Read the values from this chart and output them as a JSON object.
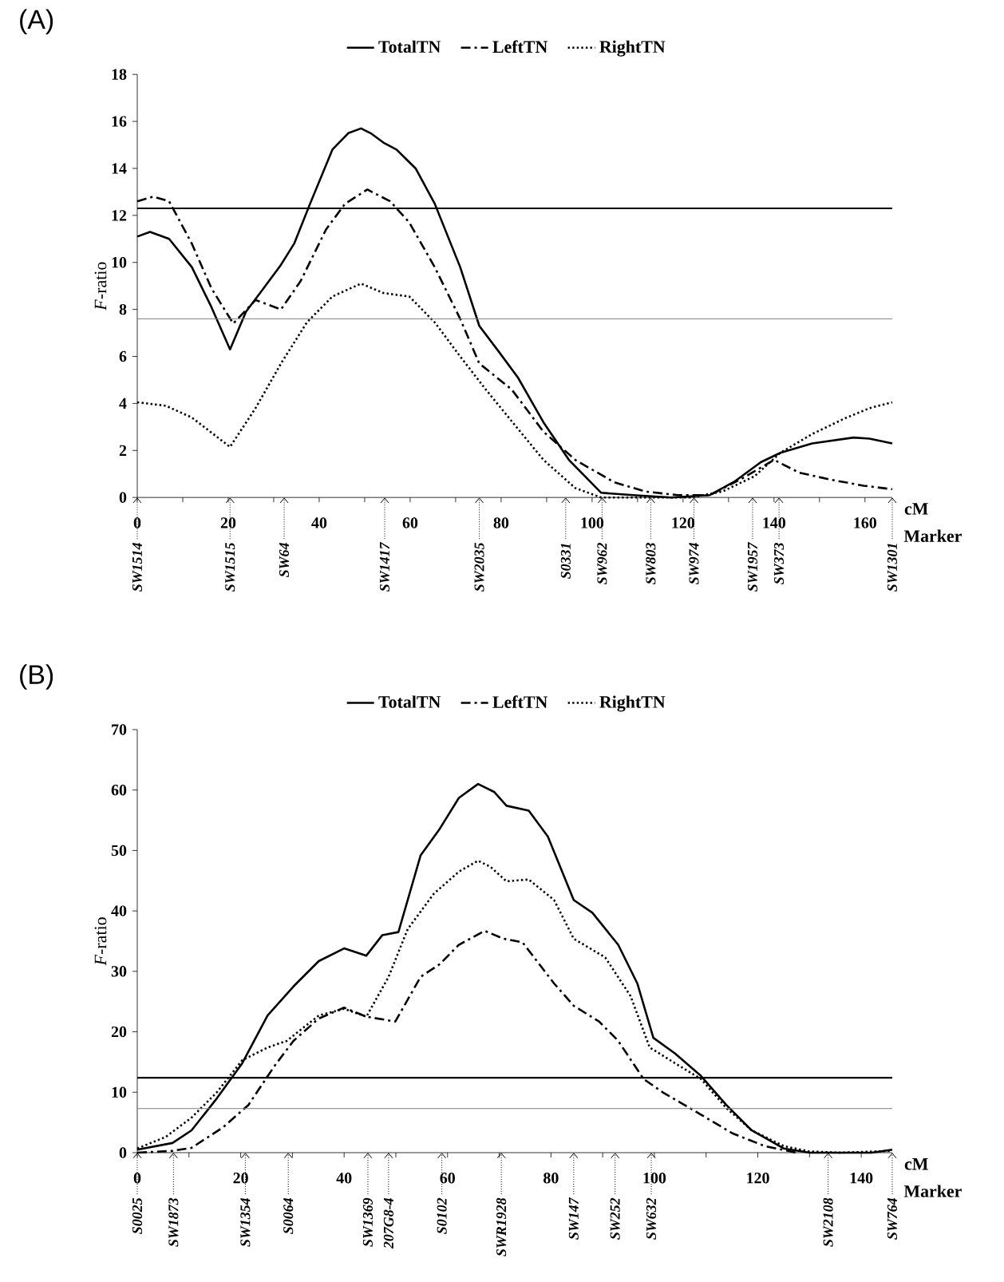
{
  "chart_data": [
    {
      "type": "line",
      "title": "(A)",
      "xlabel": "cM",
      "ylabel": "*F*-ratio",
      "legend": "top",
      "grid": false,
      "xlim": [
        0,
        166
      ],
      "ylim": [
        0,
        18
      ],
      "xticks": [
        0,
        {
          "value": 10,
          "label": null
        },
        20,
        {
          "value": 30,
          "label": null
        },
        40,
        {
          "value": 50,
          "label": null
        },
        60,
        {
          "value": 70,
          "label": null
        },
        80,
        {
          "value": 90,
          "label": null
        },
        100,
        {
          "value": 110,
          "label": null
        },
        120,
        {
          "value": 130,
          "label": null
        },
        140,
        {
          "value": 150,
          "label": null
        },
        160
      ],
      "yticks": [
        0,
        2,
        4,
        6,
        8,
        10,
        12,
        14,
        16,
        18
      ],
      "ref_lines": [
        {
          "axis": "y",
          "value": 12.3,
          "color": "#000000"
        },
        {
          "axis": "y",
          "value": 7.6,
          "color": "#808080"
        }
      ],
      "series": [
        {
          "name": "TotalTN",
          "color": "#000000",
          "line_style": "solid",
          "x": [
            0,
            2.8,
            7,
            12,
            16.3,
            20.4,
            23.9,
            27.4,
            31.6,
            34.5,
            38,
            42.9,
            46.4,
            49.2,
            51.3,
            54.1,
            57,
            61.2,
            65.4,
            71,
            75.2,
            79.5,
            83.7,
            89.3,
            94.9,
            102,
            109,
            117.4,
            125.9,
            131.5,
            137.1,
            141.4,
            148.4,
            157.5,
            161,
            166
          ],
          "values": [
            11.1,
            11.3,
            11.0,
            9.8,
            8.1,
            6.3,
            7.9,
            8.8,
            9.9,
            10.8,
            12.5,
            14.8,
            15.5,
            15.7,
            15.5,
            15.1,
            14.8,
            14.0,
            12.5,
            9.8,
            7.3,
            6.2,
            5.1,
            3.2,
            1.6,
            0.2,
            0.1,
            0,
            0.1,
            0.7,
            1.5,
            1.9,
            2.3,
            2.55,
            2.5,
            2.3
          ]
        },
        {
          "name": "LeftTN",
          "color": "#000000",
          "line_style": "dashdot",
          "x": [
            0,
            3.5,
            7,
            12,
            16.3,
            21.1,
            26,
            31.6,
            35.9,
            41.5,
            45.7,
            50.6,
            55.6,
            59.8,
            65.4,
            71,
            75.2,
            82.3,
            89.3,
            96.3,
            104.8,
            111.8,
            118.8,
            125.9,
            132.9,
            140,
            145.6,
            152.7,
            159.7,
            166
          ],
          "values": [
            12.6,
            12.8,
            12.6,
            10.8,
            8.9,
            7.4,
            8.4,
            8.0,
            9.2,
            11.4,
            12.5,
            13.1,
            12.6,
            11.7,
            9.8,
            7.6,
            5.7,
            4.6,
            2.8,
            1.6,
            0.65,
            0.25,
            0.1,
            0.1,
            0.8,
            1.6,
            1.05,
            0.75,
            0.5,
            0.35
          ]
        },
        {
          "name": "RightTN",
          "color": "#000000",
          "line_style": "dotted",
          "x": [
            0,
            6.3,
            12,
            20.4,
            26,
            31.6,
            37.3,
            42.9,
            49.2,
            54.1,
            59.8,
            65.4,
            71,
            76.6,
            82.3,
            89.3,
            96.3,
            102,
            110.4,
            121.6,
            128.6,
            135.7,
            141.4,
            148.4,
            155.4,
            161,
            166
          ],
          "values": [
            4.05,
            3.9,
            3.4,
            2.15,
            3.8,
            5.7,
            7.45,
            8.55,
            9.1,
            8.7,
            8.55,
            7.45,
            6.0,
            4.6,
            3.25,
            1.6,
            0.4,
            0,
            0,
            0,
            0.25,
            0.9,
            1.9,
            2.7,
            3.35,
            3.8,
            4.05
          ]
        }
      ],
      "annotations": [
        "Marker",
        {
          "text": "SW1514",
          "x": 0,
          "y": 0
        },
        {
          "text": "SW1515",
          "x": 20.4,
          "y": 0
        },
        {
          "text": "SW64",
          "x": 32.3,
          "y": 0
        },
        {
          "text": "SW1417",
          "x": 54.4,
          "y": 0
        },
        {
          "text": "SW2035",
          "x": 75.2,
          "y": 0
        },
        {
          "text": "S0331",
          "x": 94.2,
          "y": 0
        },
        {
          "text": "SW962",
          "x": 102.2,
          "y": 0
        },
        {
          "text": "SW803",
          "x": 112.9,
          "y": 0
        },
        {
          "text": "SW974",
          "x": 122.4,
          "y": 0
        },
        {
          "text": "SW1957",
          "x": 135.3,
          "y": 0
        },
        {
          "text": "SW373",
          "x": 141.1,
          "y": 0
        },
        {
          "text": "SW1301",
          "x": 166,
          "y": 0
        }
      ]
    },
    {
      "type": "line",
      "title": "(B)",
      "xlabel": "cM",
      "ylabel": "*F*-ratio",
      "legend": "top",
      "grid": false,
      "xlim": [
        0,
        146
      ],
      "ylim": [
        0,
        70
      ],
      "xticks": [
        0,
        {
          "value": 10,
          "label": null
        },
        20,
        {
          "value": 30,
          "label": null
        },
        40,
        {
          "value": 50,
          "label": null
        },
        60,
        {
          "value": 70,
          "label": null
        },
        80,
        {
          "value": 90,
          "label": null
        },
        100,
        {
          "value": 110,
          "label": null
        },
        120,
        {
          "value": 130,
          "label": null
        },
        140
      ],
      "yticks": [
        0,
        10,
        20,
        30,
        40,
        50,
        60,
        70
      ],
      "ref_lines": [
        {
          "axis": "y",
          "value": 12.4,
          "color": "#000000"
        },
        {
          "axis": "y",
          "value": 7.3,
          "color": "#808080"
        }
      ],
      "series": [
        {
          "name": "TotalTN",
          "color": "#000000",
          "line_style": "solid",
          "x": [
            0,
            6.8,
            10.5,
            15.4,
            20.3,
            25.2,
            30.2,
            35.1,
            40,
            44.3,
            47.4,
            50.5,
            54.8,
            58.5,
            62.2,
            65.9,
            69,
            71.4,
            75.7,
            79.4,
            84.4,
            88,
            93,
            96.7,
            99.8,
            104,
            109,
            113.9,
            118.8,
            125,
            130,
            136,
            142,
            146
          ],
          "values": [
            0.5,
            1.6,
            3.7,
            9.0,
            14.8,
            22.7,
            27.5,
            31.7,
            33.8,
            32.6,
            36.0,
            36.5,
            49.2,
            53.6,
            58.7,
            61.0,
            59.7,
            57.4,
            56.6,
            52.3,
            41.8,
            39.7,
            34.4,
            28.0,
            19.0,
            16.4,
            12.7,
            7.9,
            3.7,
            0.7,
            0,
            0,
            0,
            0.5
          ]
        },
        {
          "name": "LeftTN",
          "color": "#000000",
          "line_style": "dashdot",
          "x": [
            0,
            6.8,
            10.5,
            16.6,
            21.5,
            26.5,
            30.2,
            35.1,
            40,
            44.3,
            49.9,
            54.8,
            58.5,
            62.2,
            67.2,
            70.8,
            74.5,
            80.6,
            84.4,
            89.3,
            93,
            97.9,
            101.6,
            109,
            115.1,
            121.3,
            127.5
          ],
          "values": [
            0,
            0.3,
            0.8,
            4.2,
            7.9,
            14.3,
            18.5,
            22.2,
            24.0,
            22.5,
            21.7,
            29.1,
            31.2,
            34.4,
            36.7,
            35.4,
            34.8,
            28.0,
            24.3,
            21.7,
            18.5,
            12.2,
            10,
            6.3,
            3.2,
            1.1,
            0
          ]
        },
        {
          "name": "RightTN",
          "color": "#000000",
          "line_style": "dotted",
          "x": [
            0,
            5.5,
            10.5,
            15.4,
            20.3,
            25.2,
            28.9,
            35.1,
            40,
            44.3,
            48.6,
            52.3,
            57.3,
            62.2,
            65.9,
            68.3,
            71.4,
            75.7,
            80.6,
            84.4,
            90.5,
            95.4,
            99.1,
            104,
            109,
            113.9,
            118.8,
            125,
            130,
            136,
            146
          ],
          "values": [
            0.7,
            2.6,
            5.8,
            10,
            15.3,
            17.4,
            18.5,
            22.7,
            23.8,
            22.5,
            29.1,
            37.0,
            42.8,
            46.5,
            48.3,
            47.3,
            44.9,
            45.2,
            41.8,
            35.4,
            32.3,
            25.9,
            17.4,
            14.8,
            12.2,
            7.4,
            3.7,
            1.1,
            0.2,
            0,
            0.3
          ]
        }
      ],
      "annotations": [
        "Marker",
        {
          "text": "S0025",
          "x": 0,
          "y": 0
        },
        {
          "text": "SW1873",
          "x": 7.0,
          "y": 0
        },
        {
          "text": "SW1354",
          "x": 20.9,
          "y": 0
        },
        {
          "text": "S0064",
          "x": 29.2,
          "y": 0
        },
        {
          "text": "SW1369",
          "x": 44.6,
          "y": 0
        },
        {
          "text": "207G8-4",
          "x": 48.6,
          "y": 0
        },
        {
          "text": "S0102",
          "x": 58.9,
          "y": 0
        },
        {
          "text": "SWR1928",
          "x": 70.4,
          "y": 0
        },
        {
          "text": "SW147",
          "x": 84.4,
          "y": 0
        },
        {
          "text": "SW252",
          "x": 92.4,
          "y": 0
        },
        {
          "text": "SW632",
          "x": 99.4,
          "y": 0
        },
        {
          "text": "SW2108",
          "x": 133.6,
          "y": 0
        },
        {
          "text": "SW764",
          "x": 146,
          "y": 0
        }
      ]
    }
  ]
}
